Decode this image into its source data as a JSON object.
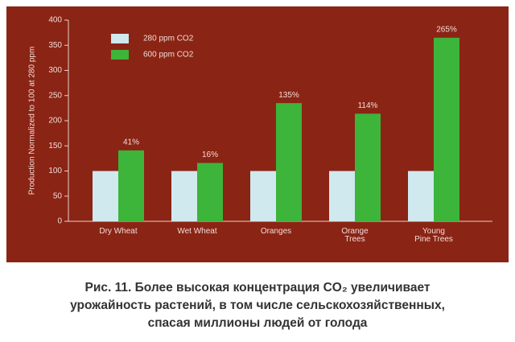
{
  "chart_data": {
    "type": "bar",
    "y_label": "Production Normalized to 100 at 280 ppm",
    "categories": [
      "Dry Wheat",
      "Wet Wheat",
      "Oranges",
      "Orange\nTrees",
      "Young\nPine Trees"
    ],
    "series": [
      {
        "name": "280 ppm CO2",
        "color": "#cfe9ef",
        "values": [
          100,
          100,
          100,
          100,
          100
        ]
      },
      {
        "name": "600 ppm CO2",
        "color": "#3db43a",
        "values": [
          141,
          116,
          235,
          214,
          365
        ]
      }
    ],
    "annotations": [
      "41%",
      "16%",
      "135%",
      "114%",
      "265%"
    ],
    "ylim": [
      0,
      400
    ],
    "yticks": [
      0,
      50,
      100,
      150,
      200,
      250,
      300,
      350,
      400
    ],
    "legend": "upper-left"
  },
  "caption": [
    "Рис. 11. Более высокая концентрация CO₂ увеличивает",
    "урожайность растений, в том числе сельскохозяйственных,",
    "спасая миллионы людей от голода"
  ]
}
